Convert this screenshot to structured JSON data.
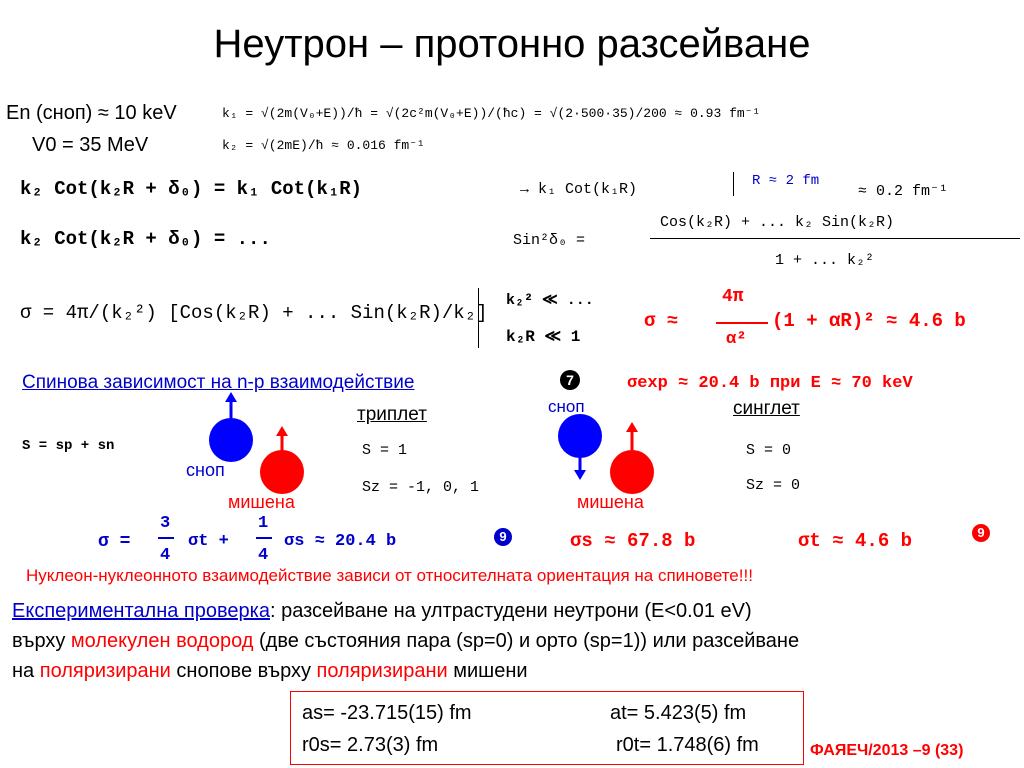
{
  "title": "Неутрон – протонно разсейване",
  "left_params": {
    "en_snop": "En (сноп) ≈ 10 keV",
    "v0": "V0 = 35 MeV"
  },
  "formulas": {
    "k1_line": "k₁ = √(2m(V₀+E))/ħ = √(2c²m(V₀+E))/(ħc) = √(2·500·35)/200 ≈ 0.93 fm⁻¹",
    "k2_line": "k₂ = √(2mE)/ħ ≈ 0.016 fm⁻¹",
    "boundary1": "k₂ Cot(k₂R + δ₀) = k₁ Cot(k₁R)",
    "boundary1_cond": "→ k₁ Cot(k₁R)",
    "r_value": "R ≈ 2 fm",
    "r_result": "≈ 0.2 fm⁻¹",
    "boundary2": "k₂ Cot(k₂R + δ₀) = ...",
    "sin2": "Sin²δ₀ = ",
    "sin2_num": "Cos(k₂R) + ... k₂ Sin(k₂R)",
    "sin2_den": "1 + ... k₂²",
    "sigma_line": "σ = 4π/(k₂²) [Cos(k₂R) + ... Sin(k₂R)/k₂]",
    "k2_small": "k₂² ≪ ...",
    "k2r_small": "k₂R ≪ 1",
    "sigma_result_left": "σ ≈",
    "sigma_result_num": "4π",
    "sigma_result_den": "α²",
    "sigma_result_right": "(1 + αR)² ≈ 4.6 b"
  },
  "spin": {
    "heading": "Спинова зависимост на n-p взаимодействие",
    "exp_result": "σexp ≈ 20.4 b при E ≈ 70 keV",
    "s_sum": "S = sp + sn",
    "triplet_label": "триплет",
    "singlet_label": "синглет",
    "triplet_s": "S = 1",
    "triplet_sz": "Sz = -1, 0, 1",
    "singlet_s": "S = 0",
    "singlet_sz": "Sz = 0",
    "snop1": "сноп",
    "target1": "мишена",
    "snop2": "сноп",
    "target2": "мишена"
  },
  "cross_sections": {
    "mix_prefix": "σ =",
    "three": "3",
    "four": "4",
    "one": "1",
    "sigma_t": "σt +",
    "sigma_s": "σs ≈ 20.4 b",
    "sigma_s_red": "σs ≈ 67.8 b",
    "sigma_t_red": "σt ≈ 4.6 b"
  },
  "conclusion": "Нуклеон-нуклеонното взаимодействие зависи от относителната ориентация на спиновете!!!",
  "experiment": {
    "label": "Експериментална проверка",
    "line1_rest": ": разсейване на ултрастудени неутрони (E<0.01 eV)",
    "line2_a": "върху ",
    "line2_red": "молекулен водород",
    "line2_b": " (две състояния пара (sp=0) и орто (sp=1)) или разсейване",
    "line3_a": "на ",
    "line3_red1": "поляризирани",
    "line3_b": " снопове върху ",
    "line3_red2": "поляризирани",
    "line3_c": " мишени"
  },
  "results_box": {
    "as": "as= -23.715(15) fm",
    "at": "at= 5.423(5) fm",
    "r0s": "r0s= 2.73(3) fm",
    "r0t": "r0t= 1.748(6) fm"
  },
  "footer": "ФАЯЕЧ/2013 –9 (33)",
  "colors": {
    "red": "#ff0000",
    "blue": "#0000cc",
    "ball_blue": "#0000ff",
    "ball_red": "#ff0000"
  }
}
